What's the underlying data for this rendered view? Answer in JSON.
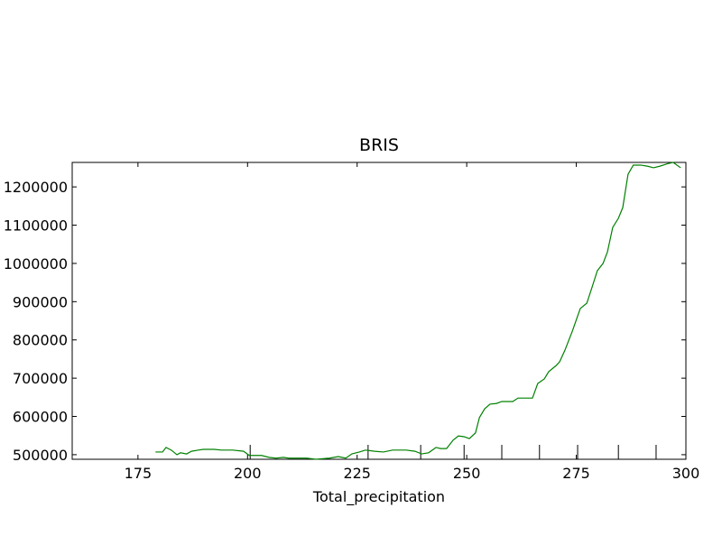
{
  "chart_data": {
    "type": "line",
    "title": "BRIS",
    "x_label": "Total_precipitation",
    "x": [
      179.0,
      180.6,
      181.4,
      182.6,
      183.9,
      184.7,
      186.1,
      187.2,
      188.8,
      189.9,
      192.4,
      194.0,
      196.6,
      199.1,
      200.4,
      203.2,
      204.9,
      206.5,
      208.2,
      209.4,
      211.5,
      213.5,
      215.6,
      218.7,
      220.7,
      222.4,
      223.8,
      225.5,
      226.9,
      229.0,
      231.0,
      233.1,
      236.2,
      238.2,
      239.7,
      241.3,
      243.0,
      244.0,
      245.4,
      246.9,
      248.1,
      249.4,
      250.6,
      252.0,
      252.9,
      254.1,
      255.3,
      256.8,
      258.0,
      260.5,
      261.7,
      265.0,
      266.2,
      267.7,
      268.7,
      270.4,
      271.2,
      272.4,
      274.1,
      275.9,
      277.4,
      278.6,
      279.8,
      281.1,
      282.1,
      283.3,
      284.6,
      285.6,
      286.8,
      288.0,
      289.7,
      291.3,
      292.6,
      294.0,
      295.9,
      297.1,
      298.8
    ],
    "series": [
      {
        "color": "#008000",
        "values": [
          507000,
          507000,
          519000,
          512000,
          500000,
          505000,
          502000,
          509000,
          512000,
          514000,
          514000,
          512000,
          512000,
          509000,
          498000,
          498000,
          493000,
          491000,
          493000,
          491000,
          491000,
          491000,
          488000,
          491000,
          495000,
          491000,
          502000,
          507000,
          512000,
          509000,
          507000,
          512000,
          512000,
          509000,
          502000,
          505000,
          519000,
          516000,
          516000,
          538000,
          549000,
          547000,
          542000,
          557000,
          597000,
          620000,
          632000,
          634000,
          639000,
          639000,
          648000,
          648000,
          686000,
          698000,
          717000,
          733000,
          743000,
          773000,
          823000,
          882000,
          896000,
          938000,
          981000,
          1000000,
          1030000,
          1094000,
          1118000,
          1146000,
          1233000,
          1257000,
          1257000,
          1254000,
          1250000,
          1254000,
          1261000,
          1264000,
          1250000
        ]
      }
    ],
    "rug": [
      200.6,
      227.5,
      239.5,
      249.4,
      258.0,
      266.6,
      275.3,
      284.6,
      293.2
    ],
    "rug_color": "#000000",
    "xlim": [
      160,
      300
    ],
    "xticks": [
      175,
      200,
      225,
      250,
      275,
      300
    ],
    "ylim": [
      488000,
      1264000
    ],
    "yticks": [
      500000,
      600000,
      700000,
      800000,
      900000,
      1000000,
      1100000,
      1200000
    ]
  }
}
